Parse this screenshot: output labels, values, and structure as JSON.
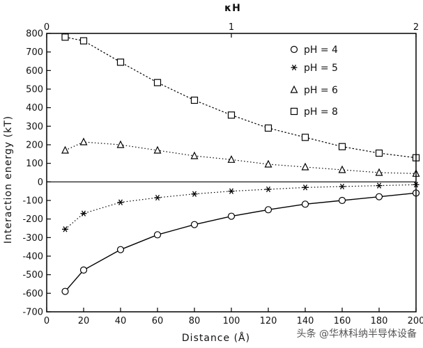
{
  "chart_data": {
    "type": "line",
    "title": "",
    "xlabel": "Distance (Å)",
    "ylabel": "Interaction energy (kT)",
    "top_xlabel": "κH",
    "top_ticks": [
      "0",
      "1",
      "2"
    ],
    "xlim": [
      0,
      200
    ],
    "ylim": [
      -700,
      800
    ],
    "x_ticks": [
      0,
      20,
      40,
      60,
      80,
      100,
      120,
      140,
      160,
      180,
      200
    ],
    "y_ticks": [
      800,
      700,
      600,
      500,
      400,
      300,
      200,
      100,
      0,
      -100,
      -200,
      -300,
      -400,
      -500,
      -600,
      -700
    ],
    "x": [
      10,
      20,
      40,
      60,
      80,
      100,
      120,
      140,
      160,
      180,
      200
    ],
    "grid": false,
    "legend_position": "top-right",
    "series": [
      {
        "name": "pH = 4",
        "marker": "circle",
        "line": "solid",
        "values": [
          -590,
          -475,
          -365,
          -285,
          -230,
          -185,
          -150,
          -120,
          -100,
          -80,
          -60
        ]
      },
      {
        "name": "pH = 5",
        "marker": "asterisk",
        "line": "dotted",
        "values": [
          -255,
          -170,
          -110,
          -85,
          -65,
          -50,
          -40,
          -30,
          -25,
          -20,
          -15
        ]
      },
      {
        "name": "pH = 6",
        "marker": "triangle",
        "line": "dotted",
        "values": [
          170,
          215,
          200,
          170,
          140,
          120,
          95,
          80,
          65,
          50,
          45
        ]
      },
      {
        "name": "pH = 8",
        "marker": "square",
        "line": "dashed",
        "values": [
          780,
          760,
          645,
          535,
          440,
          360,
          290,
          240,
          190,
          155,
          130
        ]
      }
    ]
  },
  "watermark": "头条 @华林科纳半导体设备"
}
